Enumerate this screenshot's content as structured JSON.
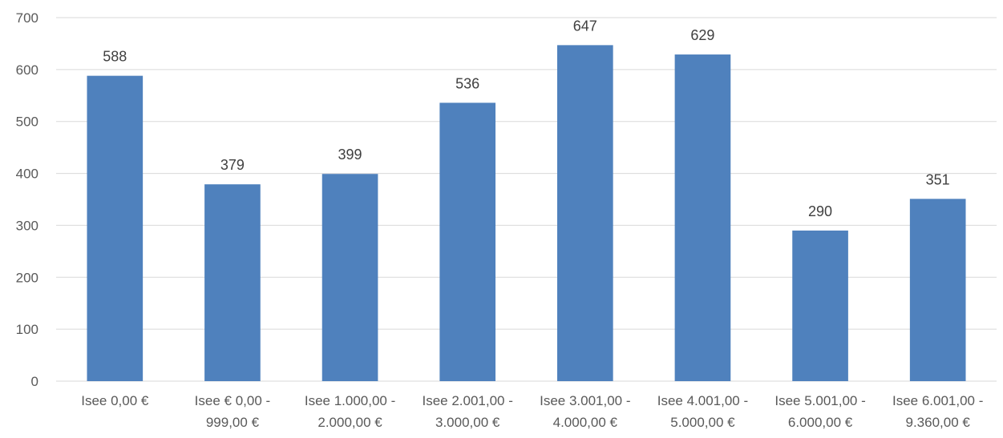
{
  "chart_data": {
    "type": "bar",
    "categories": [
      [
        "Isee 0,00 €"
      ],
      [
        "Isee € 0,00 -",
        "999,00 €"
      ],
      [
        "Isee 1.000,00 -",
        "2.000,00 €"
      ],
      [
        "Isee 2.001,00 -",
        "3.000,00 €"
      ],
      [
        "Isee 3.001,00 -",
        "4.000,00 €"
      ],
      [
        "Isee 4.001,00 -",
        "5.000,00 €"
      ],
      [
        "Isee 5.001,00 -",
        "6.000,00 €"
      ],
      [
        "Isee 6.001,00 -",
        "9.360,00 €"
      ]
    ],
    "values": [
      588,
      379,
      399,
      536,
      647,
      629,
      290,
      351
    ],
    "ylim": [
      0,
      700
    ],
    "yticks": [
      0,
      100,
      200,
      300,
      400,
      500,
      600,
      700
    ],
    "grid": true,
    "bar_color": "#4F81BD",
    "grid_color": "#D9D9D9"
  }
}
